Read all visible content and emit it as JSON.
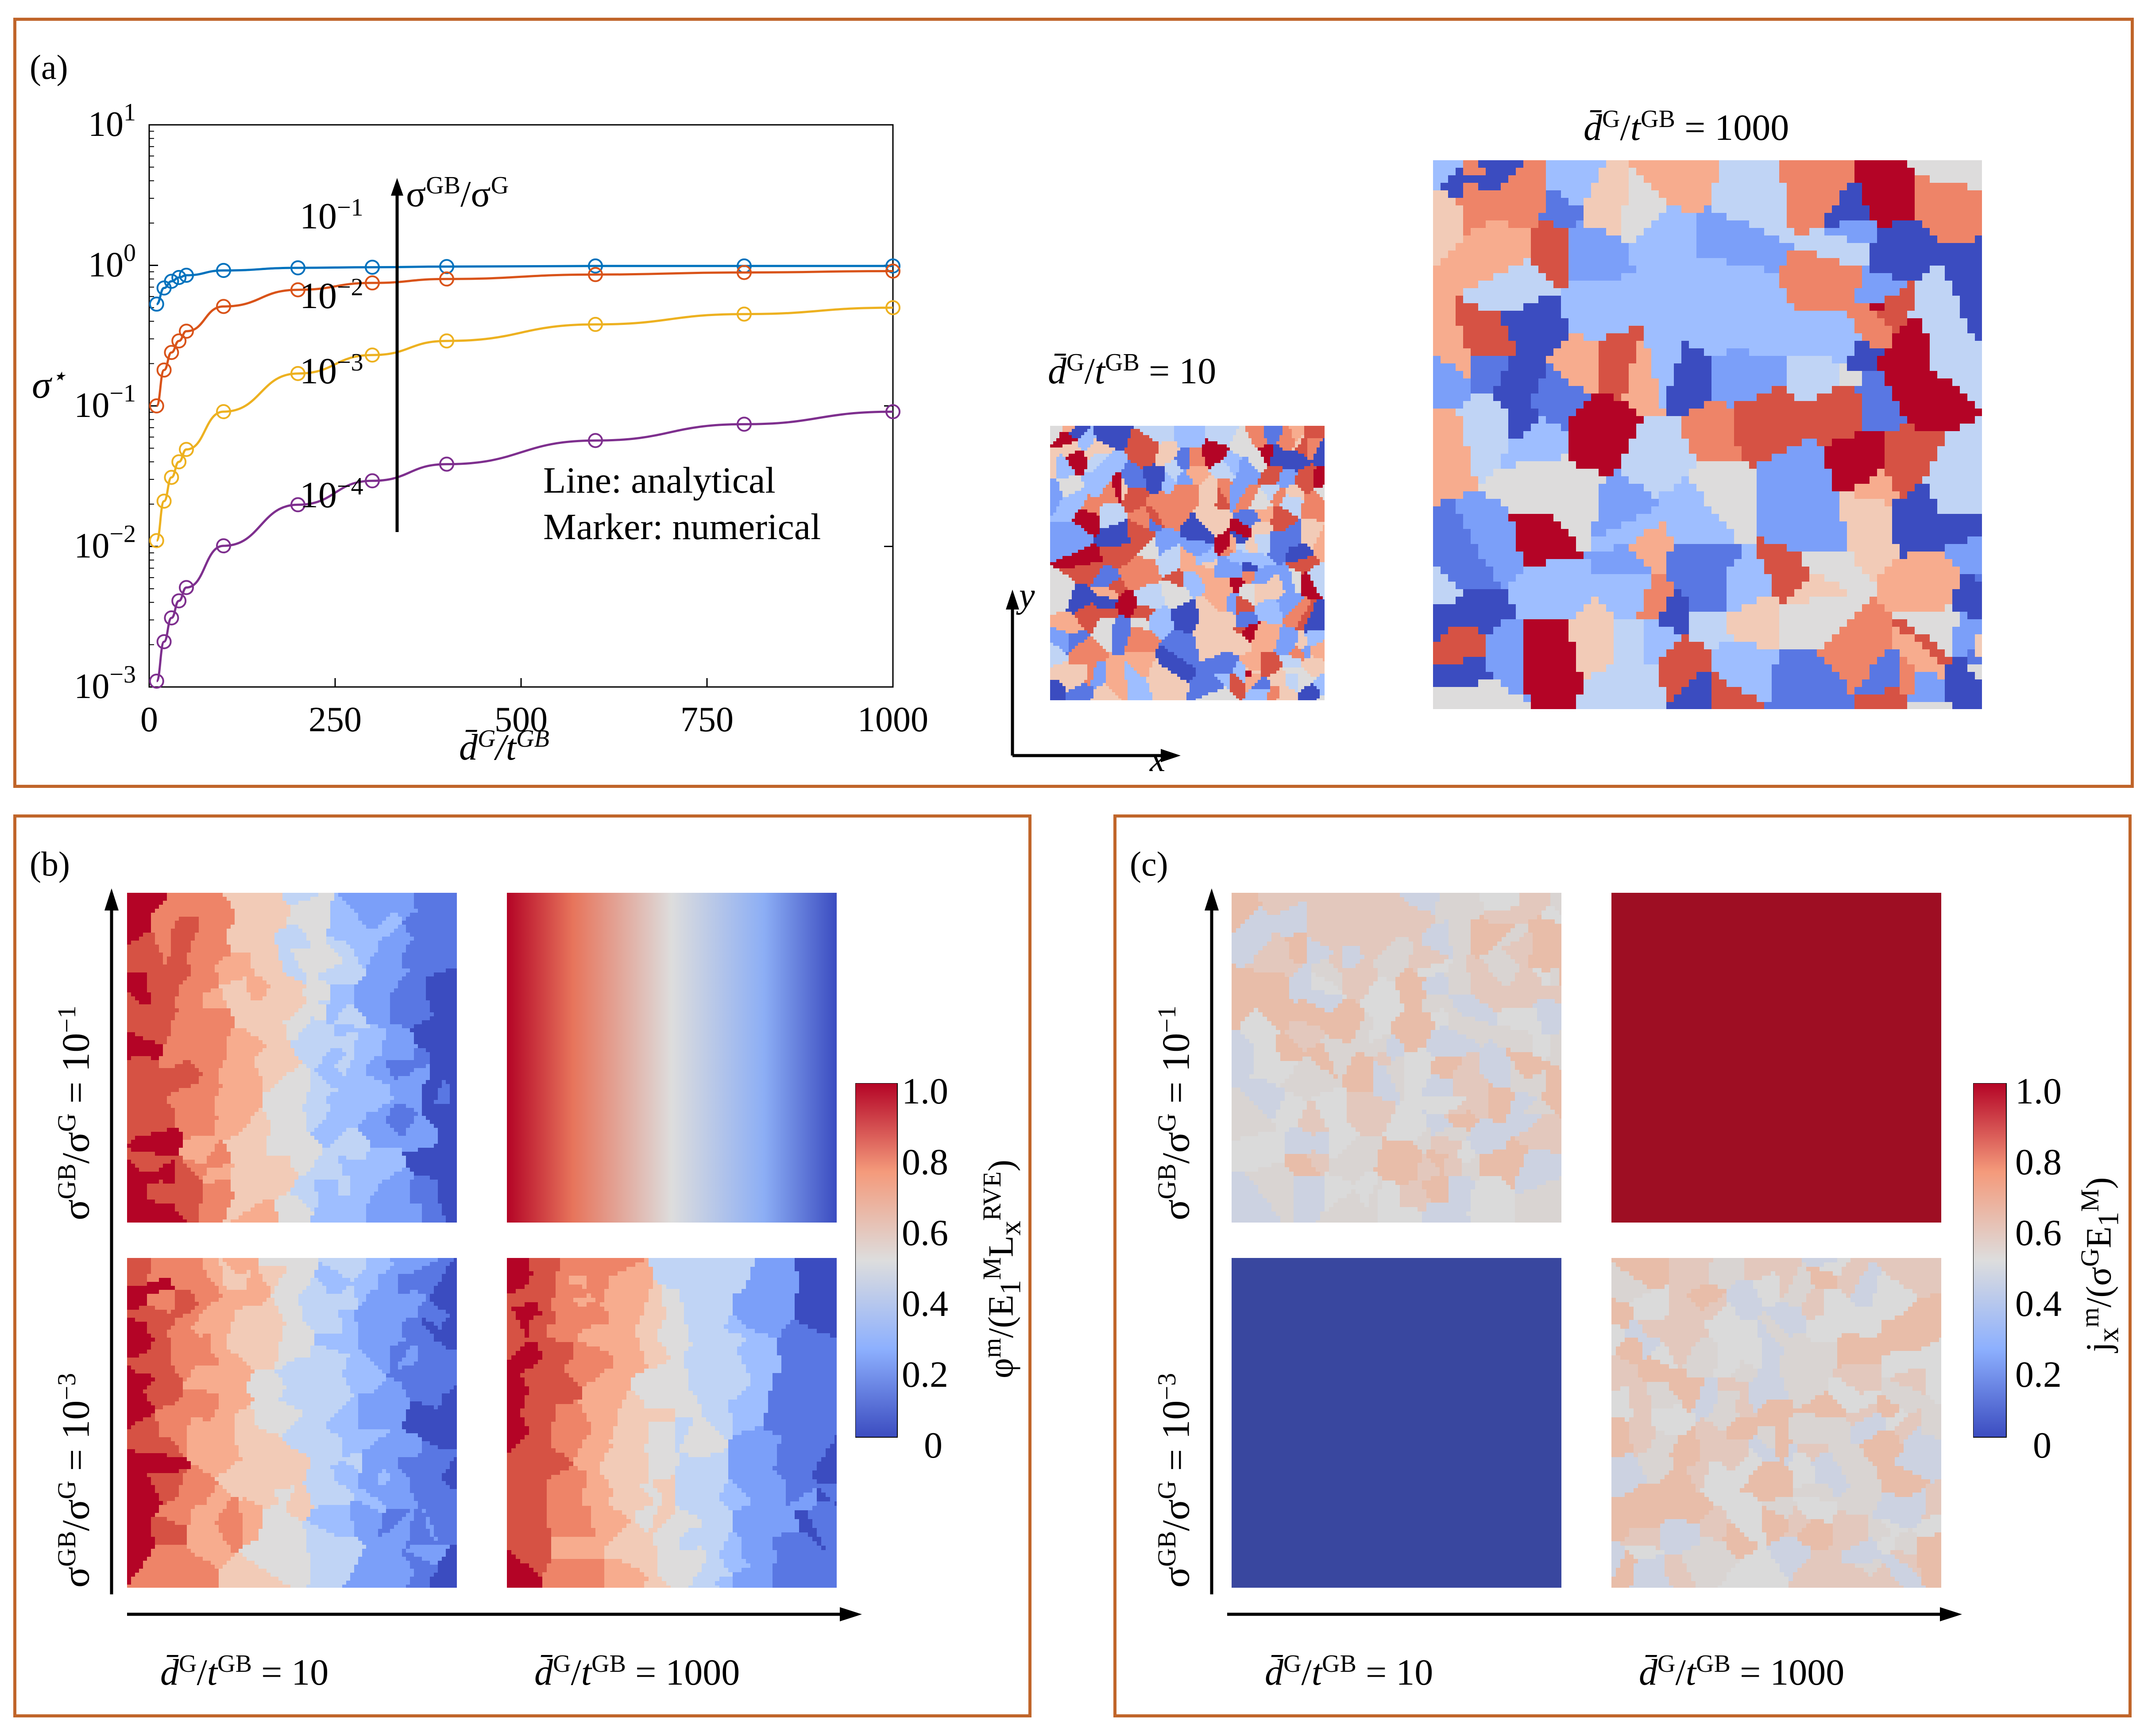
{
  "panel_a": {
    "label": "(a)",
    "legend_line": "Line: analytical",
    "legend_marker": "Marker: numerical",
    "arrow_label": "σGB/σG",
    "chart_data": {
      "type": "line",
      "title": "",
      "xlabel": "d̄G/tGB",
      "ylabel": "σ⋆",
      "xlim": [
        0,
        1000
      ],
      "ylim": [
        0.001,
        10
      ],
      "yscale": "log",
      "x_ticks": [
        "0",
        "250",
        "500",
        "750",
        "1000"
      ],
      "y_ticks": [
        "10^-3",
        "10^-2",
        "10^-1",
        "10^0",
        "10^1"
      ],
      "x": [
        10,
        20,
        30,
        40,
        50,
        100,
        200,
        300,
        400,
        600,
        800,
        1000
      ],
      "series": [
        {
          "name": "10^-1",
          "color": "#0072bd",
          "values": [
            0.53,
            0.69,
            0.77,
            0.82,
            0.85,
            0.92,
            0.96,
            0.97,
            0.98,
            0.99,
            0.99,
            0.99
          ]
        },
        {
          "name": "10^-2",
          "color": "#d95319",
          "values": [
            0.1,
            0.18,
            0.24,
            0.29,
            0.34,
            0.51,
            0.67,
            0.75,
            0.8,
            0.86,
            0.89,
            0.91
          ]
        },
        {
          "name": "10^-3",
          "color": "#edb120",
          "values": [
            0.011,
            0.021,
            0.031,
            0.04,
            0.049,
            0.091,
            0.17,
            0.23,
            0.29,
            0.38,
            0.45,
            0.5
          ]
        },
        {
          "name": "10^-4",
          "color": "#7e2f8e",
          "values": [
            0.0011,
            0.0021,
            0.0031,
            0.0041,
            0.0051,
            0.0101,
            0.0198,
            0.0293,
            0.0385,
            0.0567,
            0.0741,
            0.0909
          ]
        }
      ]
    },
    "micro_small": {
      "title": "d̄G/tGB = 10",
      "x_axis": "x",
      "y_axis": "y"
    },
    "micro_large": {
      "title": "d̄G/tGB = 1000"
    }
  },
  "panel_b": {
    "label": "(b)",
    "row_top": "σGB/σG = 10−1",
    "row_bottom": "σGB/σG = 10−3",
    "col_left": "d̄G/tGB = 10",
    "col_right": "d̄G/tGB = 1000",
    "colorbar_label": "φm/(E1M LxRVE)",
    "colorbar_ticks": [
      "1.0",
      "0.8",
      "0.6",
      "0.4",
      "0.2",
      "0"
    ]
  },
  "panel_c": {
    "label": "(c)",
    "row_top": "σGB/σG = 10−1",
    "row_bottom": "σGB/σG = 10−3",
    "col_left": "d̄G/tGB = 10",
    "col_right": "d̄G/tGB = 1000",
    "colorbar_label": "jxm/(σG E1M)",
    "colorbar_ticks": [
      "1.0",
      "0.8",
      "0.6",
      "0.4",
      "0.2",
      "0"
    ]
  },
  "colors": {
    "border": "#c0652a",
    "cool": "#3b4cc0",
    "neutral": "#dddddd",
    "warm": "#b40426"
  }
}
